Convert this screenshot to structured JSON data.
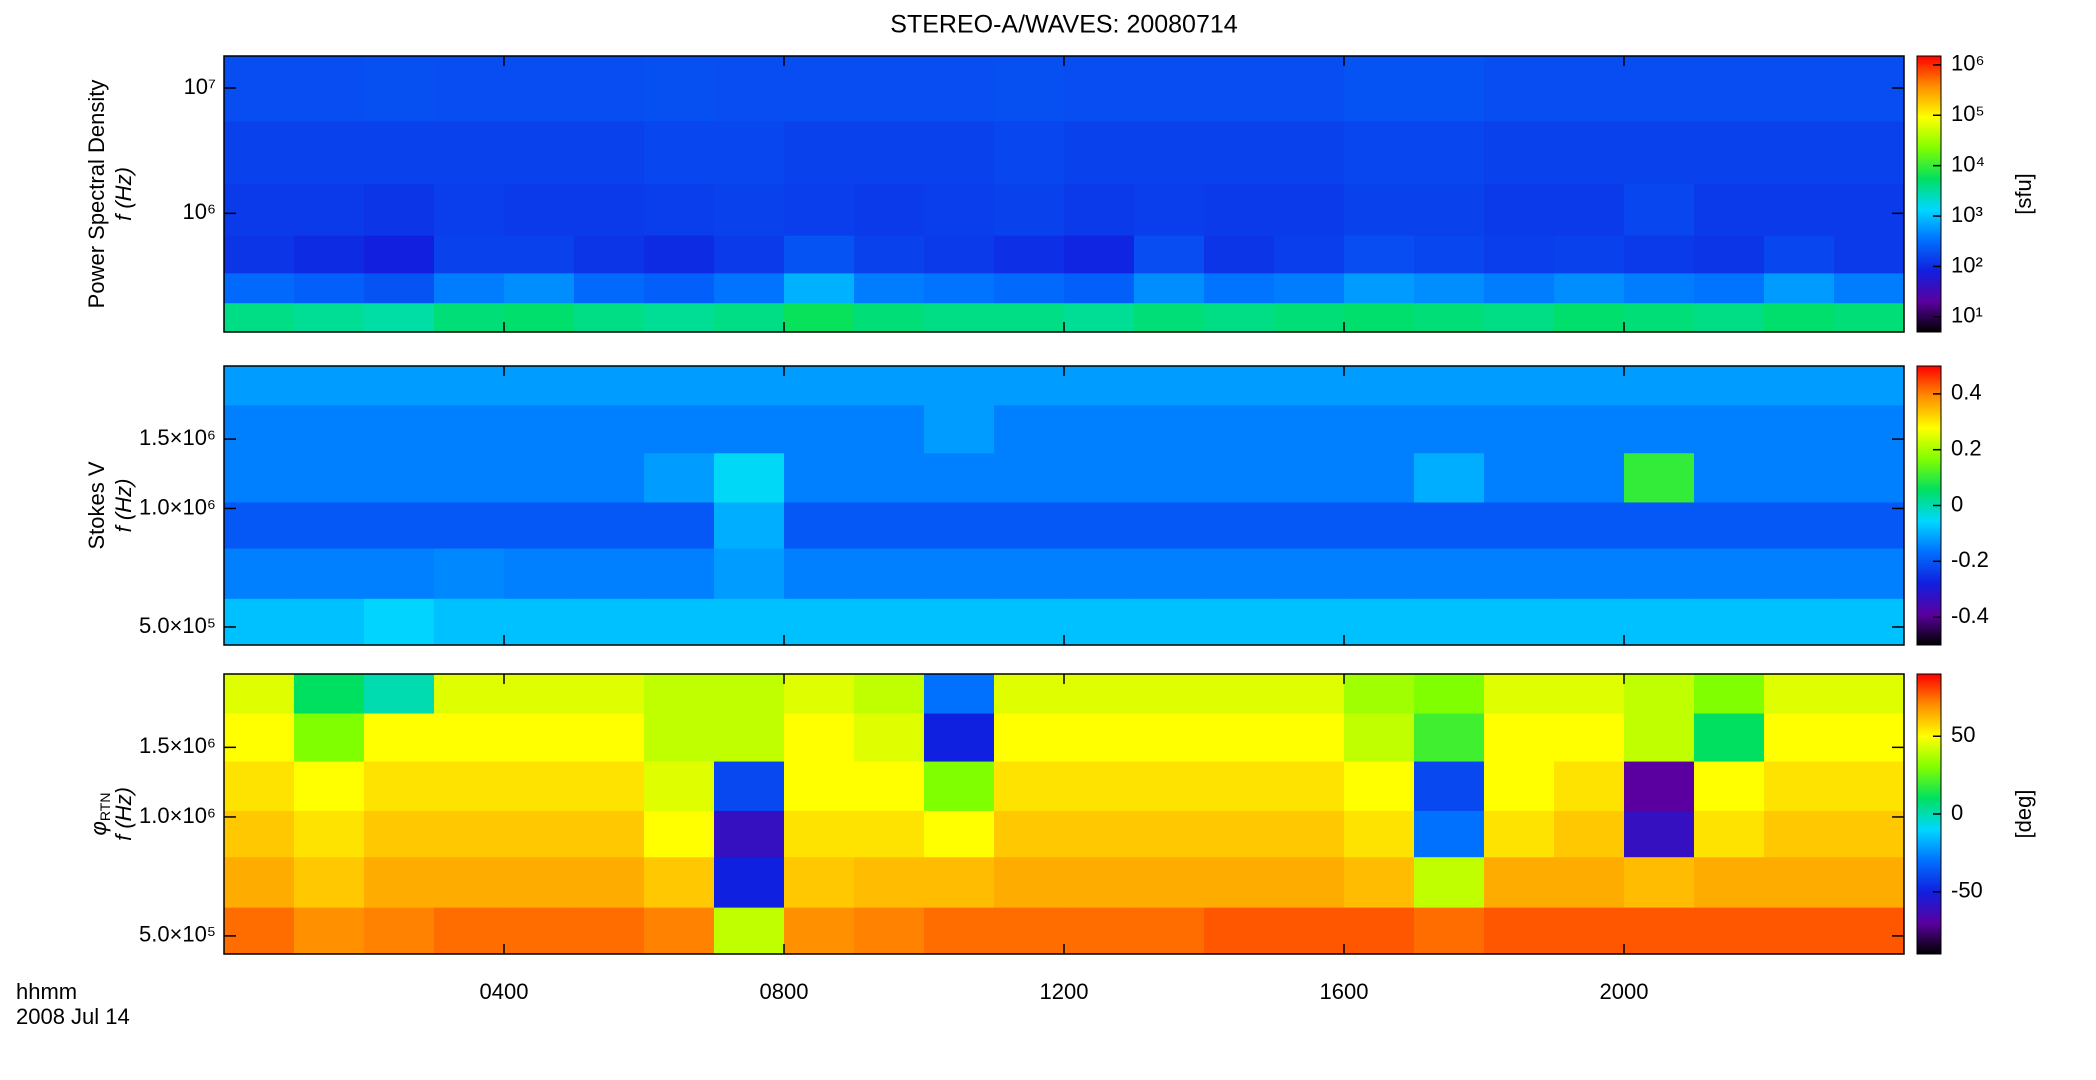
{
  "title": "STEREO-A/WAVES: 20080714",
  "x_label": "hhmm",
  "date": "2008 Jul 14",
  "colormap": [
    "#000000",
    "#5a00a0",
    "#1020e0",
    "#0070ff",
    "#00d8ff",
    "#00e060",
    "#80ff00",
    "#ffff00",
    "#ff9000",
    "#ff0000"
  ],
  "chart_data": [
    {
      "type": "heatmap",
      "ylabel": "Power Spectral Density",
      "ylabel2": "f (Hz)",
      "log_y": true,
      "ylim": [
        113000,
        18000000
      ],
      "yticks": [
        {
          "value": 1000000,
          "label": "10⁶"
        },
        {
          "value": 10000000,
          "label": "10⁷"
        }
      ],
      "xlim": [
        0,
        24
      ],
      "x": [
        0.5,
        1.5,
        2.5,
        3.5,
        4.5,
        5.5,
        6.5,
        7.5,
        8.5,
        9.5,
        10.5,
        11.5,
        12.5,
        13.5,
        14.5,
        15.5,
        16.5,
        17.5,
        18.5,
        19.5,
        20.5,
        21.5,
        22.5,
        23.5
      ],
      "y": [
        150000,
        250000,
        450000,
        1000000,
        3000000,
        10000000
      ],
      "z": [
        [
          4000,
          3500,
          3000,
          4500,
          5000,
          4000,
          3500,
          4000,
          6000,
          4500,
          4000,
          4000,
          3500,
          4500,
          4000,
          4500,
          5000,
          4500,
          4000,
          5000,
          4500,
          4000,
          5000,
          4500
        ],
        [
          300,
          250,
          200,
          400,
          500,
          300,
          250,
          350,
          800,
          400,
          350,
          300,
          250,
          500,
          350,
          400,
          600,
          500,
          400,
          500,
          400,
          350,
          600,
          400
        ],
        [
          120,
          100,
          80,
          150,
          150,
          120,
          100,
          130,
          200,
          150,
          130,
          110,
          90,
          180,
          120,
          140,
          180,
          160,
          140,
          150,
          130,
          120,
          160,
          130
        ],
        [
          130,
          130,
          120,
          140,
          130,
          130,
          140,
          150,
          140,
          130,
          140,
          150,
          130,
          140,
          130,
          130,
          150,
          150,
          130,
          130,
          160,
          130,
          130,
          130
        ],
        [
          150,
          150,
          150,
          150,
          150,
          150,
          160,
          160,
          150,
          150,
          150,
          160,
          150,
          150,
          150,
          150,
          160,
          160,
          150,
          150,
          150,
          150,
          150,
          150
        ],
        [
          180,
          180,
          190,
          180,
          180,
          180,
          190,
          180,
          180,
          180,
          180,
          190,
          180,
          180,
          180,
          180,
          200,
          200,
          180,
          180,
          180,
          180,
          180,
          180
        ]
      ],
      "cbar": {
        "log": true,
        "lim": [
          5,
          1500000
        ],
        "label": "[sfu]",
        "ticks": [
          {
            "value": 10,
            "label": "10¹"
          },
          {
            "value": 100,
            "label": "10²"
          },
          {
            "value": 1000,
            "label": "10³"
          },
          {
            "value": 10000,
            "label": "10⁴"
          },
          {
            "value": 100000,
            "label": "10⁵"
          },
          {
            "value": 1000000,
            "label": "10⁶"
          }
        ]
      }
    },
    {
      "type": "heatmap",
      "ylabel": "Stokes V",
      "ylabel2": "f (Hz)",
      "log_y": true,
      "ylim": [
        450000,
        2300000
      ],
      "yticks": [
        {
          "value": 500000,
          "label": "5.0×10⁵"
        },
        {
          "value": 1000000,
          "label": "1.0×10⁶"
        },
        {
          "value": 1500000,
          "label": "1.5×10⁶"
        }
      ],
      "xlim": [
        0,
        24
      ],
      "x": [
        0.5,
        1.5,
        2.5,
        3.5,
        4.5,
        5.5,
        6.5,
        7.5,
        8.5,
        9.5,
        10.5,
        11.5,
        12.5,
        13.5,
        14.5,
        15.5,
        16.5,
        17.5,
        18.5,
        19.5,
        20.5,
        21.5,
        22.5,
        23.5
      ],
      "y": [
        500000,
        700000,
        900000,
        1200000,
        1600000,
        2100000
      ],
      "z": [
        [
          -0.08,
          -0.08,
          -0.06,
          -0.08,
          -0.08,
          -0.08,
          -0.08,
          -0.08,
          -0.08,
          -0.08,
          -0.08,
          -0.08,
          -0.08,
          -0.08,
          -0.08,
          -0.08,
          -0.08,
          -0.08,
          -0.08,
          -0.08,
          -0.08,
          -0.08,
          -0.08,
          -0.08
        ],
        [
          -0.15,
          -0.15,
          -0.15,
          -0.14,
          -0.15,
          -0.15,
          -0.15,
          -0.12,
          -0.15,
          -0.15,
          -0.15,
          -0.15,
          -0.15,
          -0.15,
          -0.15,
          -0.15,
          -0.15,
          -0.15,
          -0.15,
          -0.15,
          -0.15,
          -0.15,
          -0.15,
          -0.15
        ],
        [
          -0.2,
          -0.2,
          -0.2,
          -0.2,
          -0.2,
          -0.2,
          -0.2,
          -0.1,
          -0.2,
          -0.2,
          -0.2,
          -0.2,
          -0.2,
          -0.2,
          -0.2,
          -0.2,
          -0.2,
          -0.2,
          -0.2,
          -0.2,
          -0.2,
          -0.2,
          -0.2,
          -0.2
        ],
        [
          -0.15,
          -0.15,
          -0.15,
          -0.15,
          -0.15,
          -0.15,
          -0.12,
          -0.05,
          -0.15,
          -0.15,
          -0.15,
          -0.15,
          -0.15,
          -0.15,
          -0.15,
          -0.15,
          -0.15,
          -0.1,
          -0.15,
          -0.15,
          0.1,
          -0.15,
          -0.15,
          -0.15
        ],
        [
          -0.15,
          -0.15,
          -0.15,
          -0.15,
          -0.15,
          -0.15,
          -0.15,
          -0.15,
          -0.15,
          -0.15,
          -0.12,
          -0.15,
          -0.15,
          -0.15,
          -0.15,
          -0.15,
          -0.15,
          -0.15,
          -0.15,
          -0.15,
          -0.15,
          -0.15,
          -0.15,
          -0.15
        ],
        [
          -0.12,
          -0.12,
          -0.12,
          -0.12,
          -0.12,
          -0.12,
          -0.12,
          -0.12,
          -0.12,
          -0.12,
          -0.12,
          -0.12,
          -0.12,
          -0.12,
          -0.12,
          -0.12,
          -0.12,
          -0.12,
          -0.12,
          -0.12,
          -0.12,
          -0.12,
          -0.12,
          -0.12
        ]
      ],
      "cbar": {
        "log": false,
        "lim": [
          -0.5,
          0.5
        ],
        "ticks": [
          -0.4,
          -0.2,
          0.0,
          0.2,
          0.4
        ]
      }
    },
    {
      "type": "heatmap",
      "ylabel": "φ",
      "ylabel_sub": "RTN",
      "ylabel2": "f (Hz)",
      "log_y": true,
      "ylim": [
        450000,
        2300000
      ],
      "yticks": [
        {
          "value": 500000,
          "label": "5.0×10⁵"
        },
        {
          "value": 1000000,
          "label": "1.0×10⁶"
        },
        {
          "value": 1500000,
          "label": "1.5×10⁶"
        }
      ],
      "xlim": [
        0,
        24
      ],
      "xticks": [
        {
          "value": 4,
          "label": "0400"
        },
        {
          "value": 8,
          "label": "0800"
        },
        {
          "value": 12,
          "label": "1200"
        },
        {
          "value": 16,
          "label": "1600"
        },
        {
          "value": 20,
          "label": "2000"
        }
      ],
      "x": [
        0.5,
        1.5,
        2.5,
        3.5,
        4.5,
        5.5,
        6.5,
        7.5,
        8.5,
        9.5,
        10.5,
        11.5,
        12.5,
        13.5,
        14.5,
        15.5,
        16.5,
        17.5,
        18.5,
        19.5,
        20.5,
        21.5,
        22.5,
        23.5
      ],
      "y": [
        500000,
        700000,
        900000,
        1200000,
        1600000,
        2100000
      ],
      "z": [
        [
          75,
          70,
          72,
          75,
          75,
          75,
          72,
          40,
          70,
          72,
          75,
          75,
          75,
          75,
          78,
          78,
          78,
          75,
          78,
          78,
          78,
          78,
          78,
          78
        ],
        [
          65,
          60,
          65,
          65,
          65,
          65,
          60,
          -50,
          60,
          62,
          62,
          65,
          65,
          65,
          65,
          65,
          62,
          40,
          65,
          65,
          62,
          65,
          65,
          65
        ],
        [
          60,
          55,
          60,
          60,
          60,
          60,
          50,
          -60,
          55,
          55,
          50,
          60,
          60,
          60,
          60,
          60,
          55,
          -30,
          55,
          60,
          -60,
          55,
          60,
          60
        ],
        [
          55,
          50,
          55,
          55,
          55,
          55,
          45,
          -40,
          50,
          50,
          30,
          55,
          55,
          55,
          55,
          55,
          50,
          -40,
          50,
          55,
          -70,
          50,
          55,
          55
        ],
        [
          50,
          30,
          50,
          50,
          50,
          50,
          40,
          40,
          50,
          45,
          -50,
          50,
          50,
          50,
          50,
          50,
          40,
          20,
          50,
          50,
          40,
          10,
          50,
          50
        ],
        [
          45,
          10,
          0,
          45,
          45,
          45,
          40,
          40,
          45,
          40,
          -30,
          45,
          45,
          45,
          45,
          45,
          35,
          30,
          45,
          45,
          40,
          30,
          45,
          45
        ]
      ],
      "cbar": {
        "log": false,
        "lim": [
          -90,
          90
        ],
        "label": "[deg]",
        "ticks": [
          -50,
          0,
          50
        ]
      }
    }
  ]
}
